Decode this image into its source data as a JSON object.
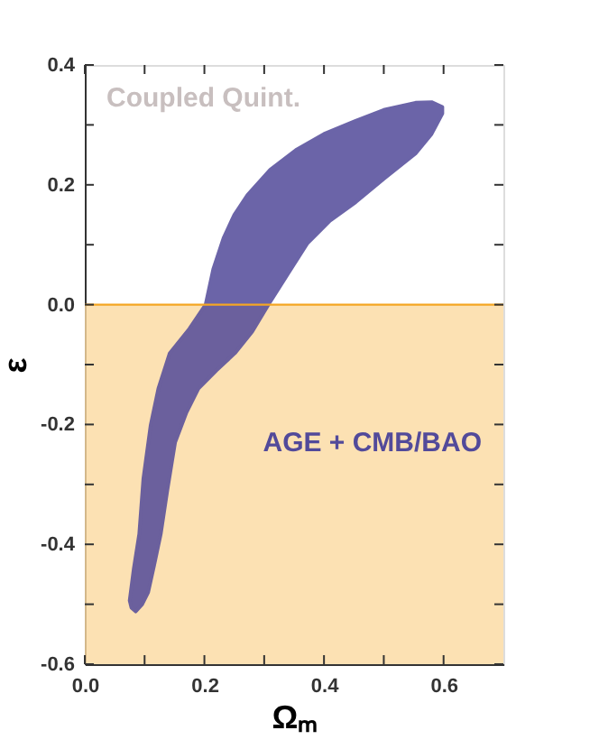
{
  "chart_data": {
    "type": "area",
    "xlabel": "Ωₘ",
    "ylabel": "ε",
    "annotations": [
      "Coupled Quint."
    ],
    "series": [
      {
        "name": "AGE + CMB/BAO",
        "color": "#524a9a",
        "x": [
          0.598,
          0.58,
          0.553,
          0.5,
          0.453,
          0.4,
          0.353,
          0.31,
          0.272,
          0.25,
          0.232,
          0.215,
          0.202,
          0.175,
          0.142,
          0.123,
          0.11,
          0.098,
          0.091,
          0.082,
          0.075,
          0.078,
          0.085,
          0.096,
          0.106,
          0.116,
          0.127,
          0.138,
          0.151,
          0.17,
          0.19,
          0.22,
          0.251,
          0.28,
          0.307,
          0.34,
          0.372,
          0.41,
          0.453,
          0.5,
          0.553,
          0.58,
          0.598
        ],
        "values": [
          0.33,
          0.338,
          0.337,
          0.325,
          0.307,
          0.285,
          0.258,
          0.225,
          0.183,
          0.15,
          0.111,
          0.06,
          0.0,
          -0.04,
          -0.081,
          -0.14,
          -0.202,
          -0.29,
          -0.383,
          -0.44,
          -0.494,
          -0.506,
          -0.512,
          -0.5,
          -0.48,
          -0.435,
          -0.383,
          -0.31,
          -0.23,
          -0.18,
          -0.14,
          -0.11,
          -0.081,
          -0.045,
          0.0,
          0.052,
          0.102,
          0.14,
          0.171,
          0.21,
          0.252,
          0.285,
          0.319
        ]
      }
    ],
    "bands": [
      {
        "axis": "y",
        "from": -0.6,
        "to": 0,
        "color": "#fbd9a0"
      }
    ],
    "ref_lines": [
      {
        "axis": "y",
        "value": 0,
        "color": "#f5a623"
      }
    ],
    "xlim": [
      0,
      0.7
    ],
    "ylim": [
      -0.6,
      0.4
    ],
    "xticks": [
      {
        "value": 0,
        "label": "0.0"
      },
      {
        "value": 0.1,
        "label": null
      },
      {
        "value": 0.2,
        "label": "0.2"
      },
      {
        "value": 0.3,
        "label": null
      },
      {
        "value": 0.4,
        "label": "0.4"
      },
      {
        "value": 0.5,
        "label": null
      },
      {
        "value": 0.6,
        "label": "0.6"
      }
    ],
    "yticks": [
      {
        "value": -0.6,
        "label": "-0.6"
      },
      {
        "value": -0.5,
        "label": null
      },
      {
        "value": -0.4,
        "label": "-0.4"
      },
      {
        "value": -0.3,
        "label": null
      },
      {
        "value": -0.2,
        "label": "-0.2"
      },
      {
        "value": -0.1,
        "label": null
      },
      {
        "value": 0,
        "label": "0.0"
      },
      {
        "value": 0.1,
        "label": null
      },
      {
        "value": 0.2,
        "label": "0.2"
      },
      {
        "value": 0.3,
        "label": null
      },
      {
        "value": 0.4,
        "label": "0.4"
      }
    ],
    "grid": false
  }
}
